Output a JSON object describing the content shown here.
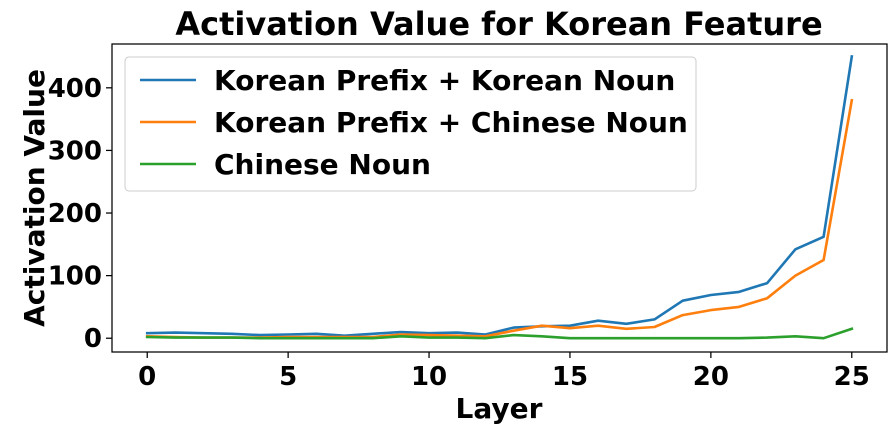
{
  "chart_data": {
    "type": "line",
    "title": "Activation Value for Korean Feature",
    "xlabel": "Layer",
    "ylabel": "Activation Value",
    "xlim": [
      -1.25,
      26.25
    ],
    "ylim": [
      -22,
      470
    ],
    "xticks": [
      0,
      5,
      10,
      15,
      20,
      25
    ],
    "yticks": [
      0,
      100,
      200,
      300,
      400
    ],
    "grid": false,
    "legend_position": "top-left",
    "x": [
      0,
      1,
      2,
      3,
      4,
      5,
      6,
      7,
      8,
      9,
      10,
      11,
      12,
      13,
      14,
      15,
      16,
      17,
      18,
      19,
      20,
      21,
      22,
      23,
      24,
      25
    ],
    "series": [
      {
        "name": "Korean Prefix + Korean Noun",
        "color": "#1f77b4",
        "values": [
          8,
          9,
          8,
          7,
          5,
          6,
          7,
          4,
          7,
          10,
          8,
          9,
          6,
          17,
          19,
          20,
          28,
          23,
          30,
          60,
          69,
          74,
          88,
          142,
          162,
          450
        ]
      },
      {
        "name": "Korean Prefix + Chinese Noun",
        "color": "#ff7f0e",
        "values": [
          3,
          2,
          1,
          1,
          1,
          2,
          2,
          2,
          2,
          6,
          5,
          4,
          3,
          12,
          20,
          16,
          20,
          15,
          18,
          37,
          45,
          50,
          64,
          100,
          125,
          380
        ]
      },
      {
        "name": "Chinese Noun",
        "color": "#2ca02c",
        "values": [
          2,
          1,
          1,
          1,
          0,
          0,
          0,
          0,
          0,
          3,
          1,
          1,
          0,
          5,
          3,
          0,
          0,
          0,
          0,
          0,
          0,
          0,
          1,
          3,
          0,
          15
        ]
      }
    ]
  }
}
